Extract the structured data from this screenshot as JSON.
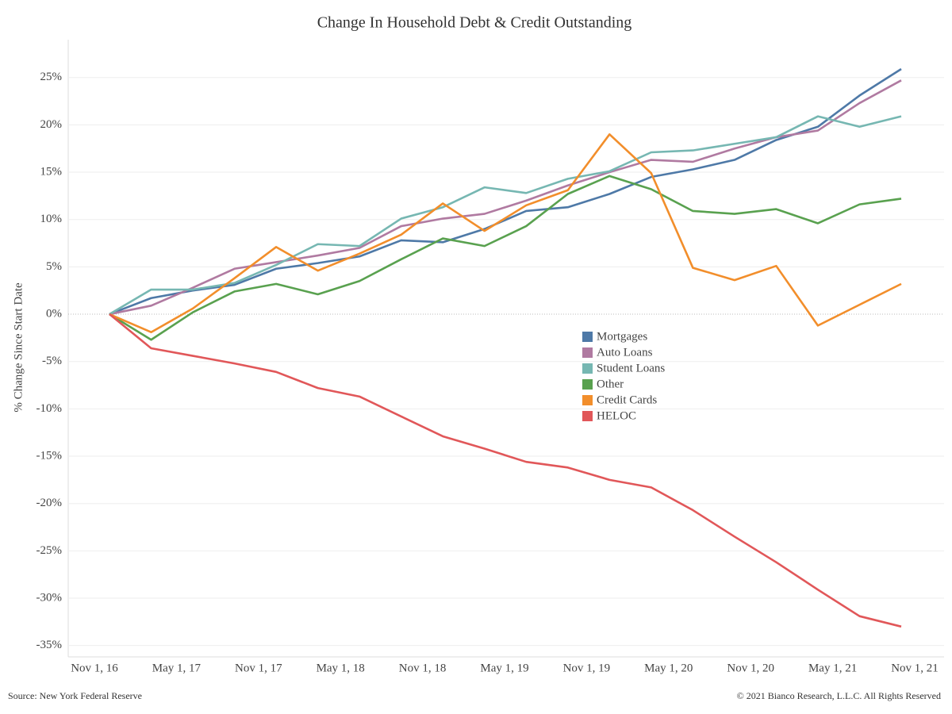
{
  "chart_data": {
    "type": "line",
    "title": "Change In Household Debt & Credit Outstanding",
    "y_label": "% Change Since Start Date",
    "source": "Source: New York Federal Reserve",
    "copyright": "© 2021 Bianco Research, L.L.C. All Rights Reserved",
    "xtick_labels": [
      "Nov 1, 16",
      "May 1, 17",
      "Nov 1, 17",
      "May 1, 18",
      "Nov 1, 18",
      "May 1, 19",
      "Nov 1, 19",
      "May 1, 20",
      "Nov 1, 20",
      "May 1, 21",
      "Nov 1, 21"
    ],
    "ylim": [
      -36.2,
      29
    ],
    "yticks": [
      {
        "value": -35,
        "label": "-35%"
      },
      {
        "value": -30,
        "label": "-30%"
      },
      {
        "value": -25,
        "label": "-25%"
      },
      {
        "value": -20,
        "label": "-20%"
      },
      {
        "value": -15,
        "label": "-15%"
      },
      {
        "value": -10,
        "label": "-10%"
      },
      {
        "value": -5,
        "label": "-5%"
      },
      {
        "value": 0,
        "label": "0%"
      },
      {
        "value": 5,
        "label": "5%"
      },
      {
        "value": 10,
        "label": "10%"
      },
      {
        "value": 15,
        "label": "15%"
      },
      {
        "value": 20,
        "label": "20%"
      },
      {
        "value": 25,
        "label": "25%"
      }
    ],
    "grid": true,
    "series": [
      {
        "name": "Mortgages",
        "color": "#4e79a7",
        "values": [
          0,
          1.7,
          2.5,
          3.1,
          4.8,
          5.4,
          6.1,
          7.8,
          7.6,
          9.0,
          10.9,
          11.3,
          12.7,
          14.5,
          15.3,
          16.3,
          18.4,
          19.8,
          23.1,
          25.9
        ]
      },
      {
        "name": "Auto Loans",
        "color": "#b07aa1",
        "values": [
          0,
          0.9,
          2.8,
          4.8,
          5.5,
          6.2,
          7.0,
          9.3,
          10.1,
          10.6,
          12.0,
          13.6,
          15.0,
          16.3,
          16.1,
          17.5,
          18.7,
          19.4,
          22.3,
          24.7
        ]
      },
      {
        "name": "Student Loans",
        "color": "#76b7b2",
        "values": [
          0,
          2.6,
          2.6,
          3.3,
          5.2,
          7.4,
          7.2,
          10.1,
          11.3,
          13.4,
          12.8,
          14.3,
          15.1,
          17.1,
          17.3,
          18.0,
          18.7,
          20.9,
          19.8,
          20.9
        ]
      },
      {
        "name": "Other",
        "color": "#59a14f",
        "values": [
          0,
          -2.7,
          0.2,
          2.4,
          3.2,
          2.1,
          3.5,
          5.8,
          8.0,
          7.2,
          9.3,
          12.7,
          14.6,
          13.2,
          10.9,
          10.6,
          11.1,
          9.6,
          11.6,
          12.2
        ]
      },
      {
        "name": "Credit Cards",
        "color": "#f28e2b",
        "values": [
          0,
          -1.9,
          0.6,
          3.8,
          7.1,
          4.6,
          6.4,
          8.4,
          11.7,
          8.8,
          11.5,
          13.1,
          19.0,
          14.9,
          4.9,
          3.6,
          5.1,
          -1.2,
          1.0,
          3.2
        ]
      },
      {
        "name": "HELOC",
        "color": "#e15759",
        "values": [
          0,
          -3.6,
          -4.4,
          -5.2,
          -6.1,
          -7.8,
          -8.7,
          -10.8,
          -12.9,
          -14.2,
          -15.6,
          -16.2,
          -17.5,
          -18.3,
          -20.7,
          -23.5,
          -26.2,
          -29.1,
          -31.9,
          -33.0
        ]
      }
    ]
  }
}
